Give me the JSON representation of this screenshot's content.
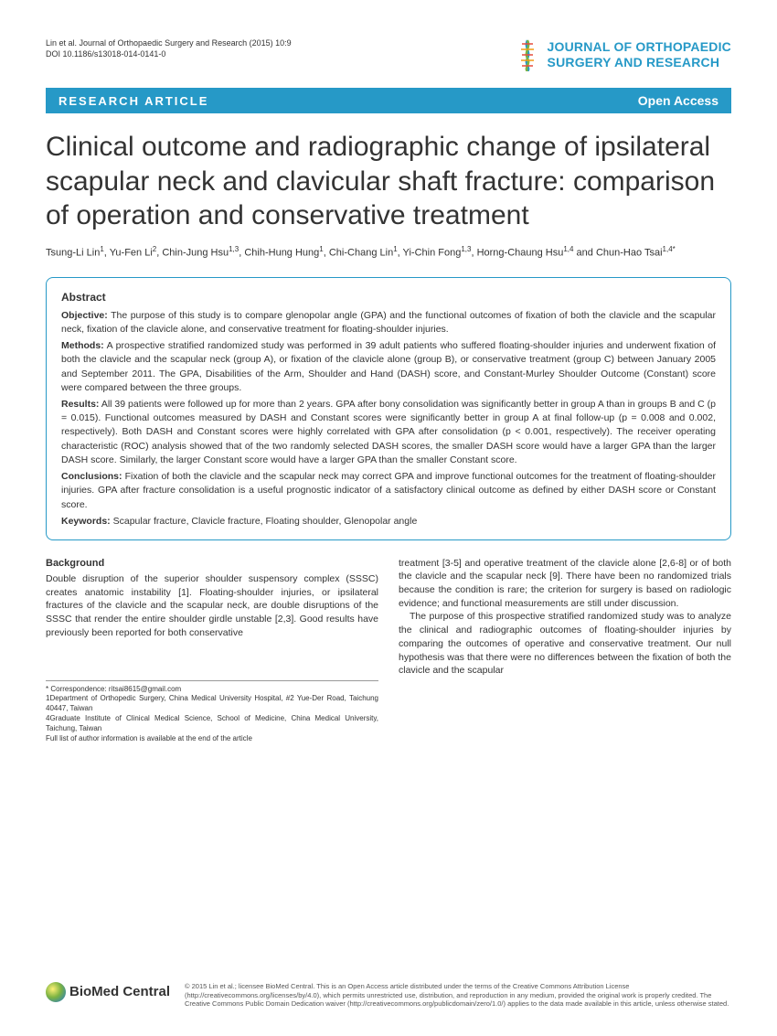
{
  "header": {
    "citation_line1": "Lin et al. Journal of Orthopaedic Surgery and Research  (2015) 10:9",
    "citation_line2": "DOI 10.1186/s13018-014-0141-0",
    "journal_name_line1": "JOURNAL OF ORTHOPAEDIC",
    "journal_name_line2": "SURGERY AND RESEARCH"
  },
  "banner": {
    "type": "RESEARCH ARTICLE",
    "access": "Open Access"
  },
  "title": "Clinical outcome and radiographic change of ipsilateral scapular neck and clavicular shaft fracture: comparison of operation and conservative treatment",
  "authors_html": "Tsung-Li Lin<sup>1</sup>, Yu-Fen Li<sup>2</sup>, Chin-Jung Hsu<sup>1,3</sup>, Chih-Hung Hung<sup>1</sup>, Chi-Chang Lin<sup>1</sup>, Yi-Chin Fong<sup>1,3</sup>, Horng-Chaung Hsu<sup>1,4</sup> and Chun-Hao Tsai<sup>1,4*</sup>",
  "abstract": {
    "heading": "Abstract",
    "objective_label": "Objective:",
    "objective": "The purpose of this study is to compare glenopolar angle (GPA) and the functional outcomes of fixation of both the clavicle and the scapular neck, fixation of the clavicle alone, and conservative treatment for floating-shoulder injuries.",
    "methods_label": "Methods:",
    "methods": "A prospective stratified randomized study was performed in 39 adult patients who suffered floating-shoulder injuries and underwent fixation of both the clavicle and the scapular neck (group A), or fixation of the clavicle alone (group B), or conservative treatment (group C) between January 2005 and September 2011. The GPA, Disabilities of the Arm, Shoulder and Hand (DASH) score, and Constant-Murley Shoulder Outcome (Constant) score were compared between the three groups.",
    "results_label": "Results:",
    "results": "All 39 patients were followed up for more than 2 years. GPA after bony consolidation was significantly better in group A than in groups B and C (p = 0.015). Functional outcomes measured by DASH and Constant scores were significantly better in group A at final follow-up (p = 0.008 and 0.002, respectively). Both DASH and Constant scores were highly correlated with GPA after consolidation (p < 0.001, respectively). The receiver operating characteristic (ROC) analysis showed that of the two randomly selected DASH scores, the smaller DASH score would have a larger GPA than the larger DASH score. Similarly, the larger Constant score would have a larger GPA than the smaller Constant score.",
    "conclusions_label": "Conclusions:",
    "conclusions": "Fixation of both the clavicle and the scapular neck may correct GPA and improve functional outcomes for the treatment of floating-shoulder injuries. GPA after fracture consolidation is a useful prognostic indicator of a satisfactory clinical outcome as defined by either DASH score or Constant score.",
    "keywords_label": "Keywords:",
    "keywords": "Scapular fracture, Clavicle fracture, Floating shoulder, Glenopolar angle"
  },
  "body": {
    "col1": {
      "heading": "Background",
      "p1": "Double disruption of the superior shoulder suspensory complex (SSSC) creates anatomic instability [1]. Floating-shoulder injuries, or ipsilateral fractures of the clavicle and the scapular neck, are double disruptions of the SSSC that render the entire shoulder girdle unstable [2,3]. Good results have previously been reported for both conservative"
    },
    "col2": {
      "p1": "treatment [3-5] and operative treatment of the clavicle alone [2,6-8] or of both the clavicle and the scapular neck [9]. There have been no randomized trials because the condition is rare; the criterion for surgery is based on radiologic evidence; and functional measurements are still under discussion.",
      "p2": "The purpose of this prospective stratified randomized study was to analyze the clinical and radiographic outcomes of floating-shoulder injuries by comparing the outcomes of operative and conservative treatment. Our null hypothesis was that there were no differences between the fixation of both the clavicle and the scapular"
    }
  },
  "correspondence": {
    "line1": "* Correspondence: ritsai8615@gmail.com",
    "line2": "1Department of Orthopedic Surgery, China Medical University Hospital, #2 Yue-Der Road, Taichung 40447, Taiwan",
    "line3": "4Graduate Institute of Clinical Medical Science, School of Medicine, China Medical University, Taichung, Taiwan",
    "line4": "Full list of author information is available at the end of the article"
  },
  "footer": {
    "logo_text": "BioMed Central",
    "copyright": "© 2015 Lin et al.; licensee BioMed Central. This is an Open Access article distributed under the terms of the Creative Commons Attribution License (http://creativecommons.org/licenses/by/4.0), which permits unrestricted use, distribution, and reproduction in any medium, provided the original work is properly credited. The Creative Commons Public Domain Dedication waiver (http://creativecommons.org/publicdomain/zero/1.0/) applies to the data made available in this article, unless otherwise stated."
  },
  "colors": {
    "brand_blue": "#2699c7",
    "text": "#333333"
  }
}
